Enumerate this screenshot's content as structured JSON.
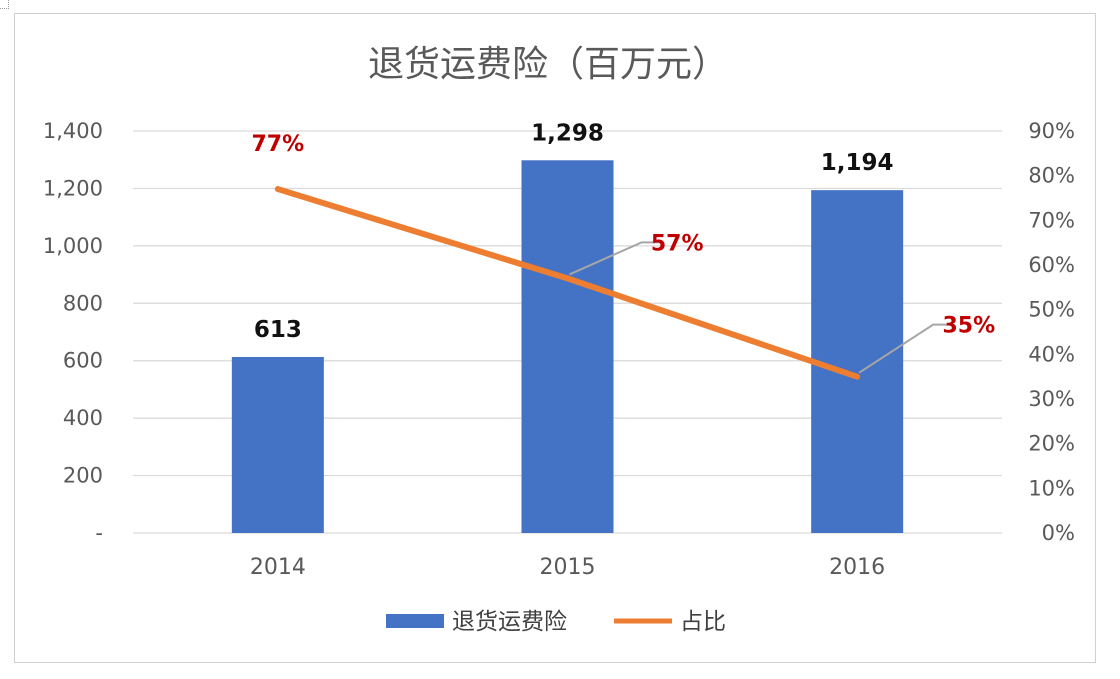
{
  "colors": {
    "bar": "#4472C4",
    "line": "#ED7D31",
    "pct_label": "#C00000",
    "grid": "#D9D9D9",
    "leader": "#A6A6A6"
  },
  "chart_data": {
    "type": "bar",
    "title": "退货运费险（百万元）",
    "categories": [
      "2014",
      "2015",
      "2016"
    ],
    "series": [
      {
        "name": "退货运费险",
        "type": "bar",
        "axis": "left",
        "values": [
          613,
          1298,
          1194
        ],
        "labels": [
          "613",
          "1,298",
          "1,194"
        ]
      },
      {
        "name": "占比",
        "type": "line",
        "axis": "right",
        "values": [
          0.77,
          0.57,
          0.35
        ],
        "labels": [
          "77%",
          "57%",
          "35%"
        ]
      }
    ],
    "left_axis": {
      "min": 0,
      "max": 1400,
      "step": 200,
      "tick_labels": [
        "-",
        "200",
        "400",
        "600",
        "800",
        "1,000",
        "1,200",
        "1,400"
      ]
    },
    "right_axis": {
      "min": 0,
      "max": 0.9,
      "step": 0.1,
      "tick_labels": [
        "0%",
        "10%",
        "20%",
        "30%",
        "40%",
        "50%",
        "60%",
        "70%",
        "80%",
        "90%"
      ]
    },
    "grid": true,
    "legend_position": "bottom"
  }
}
